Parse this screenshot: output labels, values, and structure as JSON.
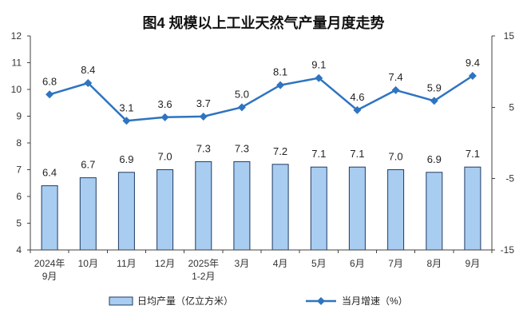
{
  "chart_data": {
    "type": "bar",
    "title": "图4 规模以上工业天然气产量月度走势",
    "categories": [
      [
        "2024年",
        "9月"
      ],
      [
        "10月"
      ],
      [
        "11月"
      ],
      [
        "12月"
      ],
      [
        "2025年",
        "1-2月"
      ],
      [
        "3月"
      ],
      [
        "4月"
      ],
      [
        "5月"
      ],
      [
        "6月"
      ],
      [
        "7月"
      ],
      [
        "8月"
      ],
      [
        "9月"
      ]
    ],
    "y_left": {
      "min": 4,
      "max": 12,
      "ticks": [
        12,
        11,
        10,
        9,
        8,
        7,
        6,
        5,
        4
      ]
    },
    "y_right": {
      "min": -15,
      "max": 15,
      "ticks": [
        15,
        5,
        -5,
        -15
      ]
    },
    "grid": false,
    "legend_position": "bottom",
    "series": [
      {
        "name": "日均产量（亿立方米）",
        "type": "bar",
        "axis": "left",
        "values": [
          6.4,
          6.7,
          6.9,
          7.0,
          7.3,
          7.3,
          7.2,
          7.1,
          7.1,
          7.0,
          6.9,
          7.1
        ],
        "value_labels": [
          "6.4",
          "6.7",
          "6.9",
          "7.0",
          "7.3",
          "7.3",
          "7.2",
          "7.1",
          "7.1",
          "7.0",
          "6.9",
          "7.1"
        ],
        "color": "#a9cdf0",
        "edge_color": "#1f3a63"
      },
      {
        "name": "当月增速（%）",
        "type": "line",
        "axis": "right",
        "marker": "diamond",
        "values": [
          6.8,
          8.4,
          3.1,
          3.6,
          3.7,
          5.0,
          8.1,
          9.1,
          4.6,
          7.4,
          5.9,
          9.4
        ],
        "value_labels": [
          "6.8",
          "8.4",
          "3.1",
          "3.6",
          "3.7",
          "5.0",
          "8.1",
          "9.1",
          "4.6",
          "7.4",
          "5.9",
          "9.4"
        ],
        "color": "#2e74c0"
      }
    ]
  }
}
